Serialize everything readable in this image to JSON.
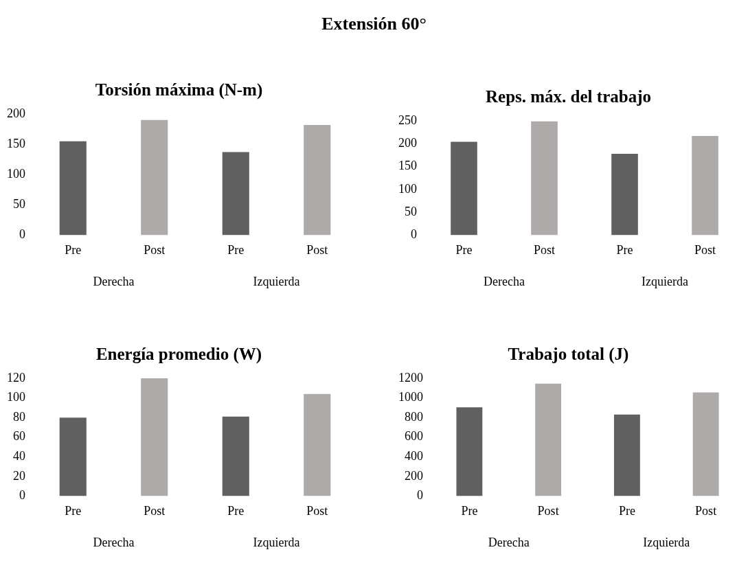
{
  "chart_data": [
    {
      "type": "other",
      "title": "Extensión 60°"
    },
    {
      "type": "bar",
      "title": "Torsión máxima (N-m)",
      "categories": [
        "Pre",
        "Post",
        "Pre",
        "Post"
      ],
      "values": [
        155,
        190,
        137,
        182
      ],
      "colors": [
        "#606060",
        "#aeaaa9",
        "#606060",
        "#aeaaa9"
      ],
      "ylim": [
        0,
        200
      ],
      "yticks": [
        0,
        50,
        100,
        150,
        200
      ],
      "annotations": [
        "Derecha",
        "Izquierda"
      ]
    },
    {
      "type": "bar",
      "title": "Reps. máx. del trabajo",
      "categories": [
        "Pre",
        "Post",
        "Pre",
        "Post"
      ],
      "values": [
        204,
        249,
        178,
        217
      ],
      "colors": [
        "#606060",
        "#aeaaa9",
        "#606060",
        "#aeaaa9"
      ],
      "ylim": [
        0,
        250
      ],
      "yticks": [
        0,
        50,
        100,
        150,
        200,
        250
      ],
      "annotations": [
        "Derecha",
        "Izquierda"
      ]
    },
    {
      "type": "bar",
      "title": "Energía promedio (W)",
      "categories": [
        "Pre",
        "Post",
        "Pre",
        "Post"
      ],
      "values": [
        80,
        120,
        81,
        104
      ],
      "colors": [
        "#606060",
        "#aeaaa9",
        "#606060",
        "#aeaaa9"
      ],
      "ylim": [
        0,
        120
      ],
      "yticks": [
        0,
        20,
        40,
        60,
        80,
        100,
        120
      ],
      "annotations": [
        "Derecha",
        "Izquierda"
      ]
    },
    {
      "type": "bar",
      "title": "Trabajo total (J)",
      "categories": [
        "Pre",
        "Post",
        "Pre",
        "Post"
      ],
      "values": [
        905,
        1146,
        830,
        1057
      ],
      "colors": [
        "#606060",
        "#aeaaa9",
        "#606060",
        "#aeaaa9"
      ],
      "ylim": [
        0,
        1200
      ],
      "yticks": [
        0,
        200,
        400,
        600,
        800,
        1000,
        1200
      ],
      "annotations": [
        "Derecha",
        "Izquierda"
      ]
    }
  ]
}
